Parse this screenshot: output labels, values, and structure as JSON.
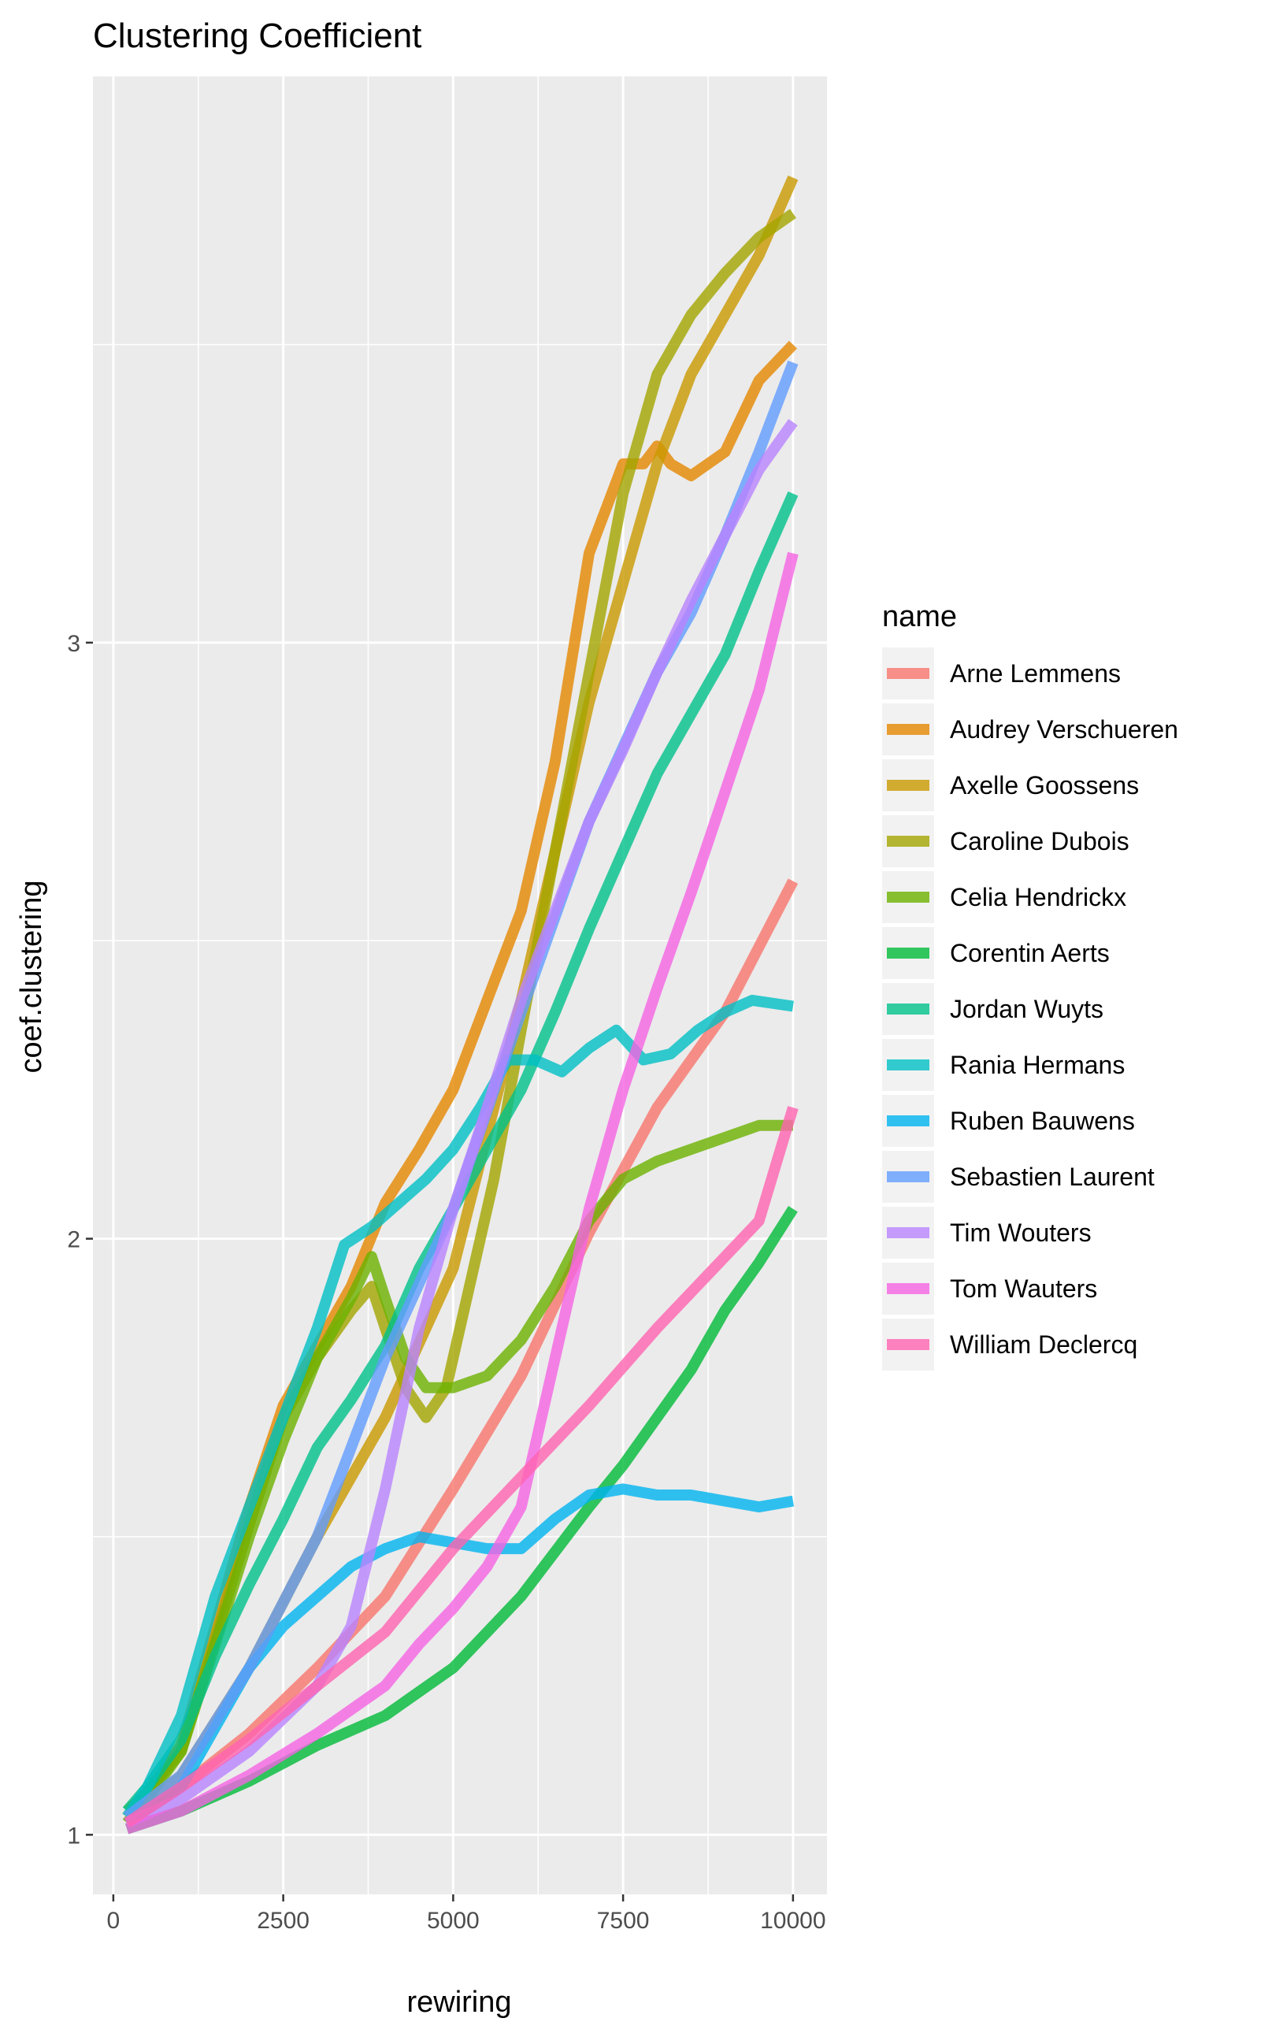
{
  "chart_data": {
    "type": "line",
    "title": "Clustering Coefficient",
    "xlabel": "rewiring",
    "ylabel": "coef.clustering",
    "xlim": [
      -300,
      10500
    ],
    "ylim": [
      0.9,
      3.95
    ],
    "x_ticks": [
      0,
      2500,
      5000,
      7500,
      10000
    ],
    "x_tick_labels": [
      "0",
      "2500",
      "5000",
      "7500",
      "10000"
    ],
    "y_ticks": [
      1,
      2,
      3
    ],
    "y_tick_labels": [
      "1",
      "2",
      "3"
    ],
    "grid": true,
    "legend_title": "name",
    "legend_position": "right",
    "series": [
      {
        "name": "Arne Lemmens",
        "color": "#F8766D",
        "x": [
          200,
          1000,
          2000,
          3000,
          4000,
          5000,
          6000,
          7000,
          8000,
          9000,
          10000
        ],
        "y": [
          1.02,
          1.08,
          1.17,
          1.28,
          1.4,
          1.58,
          1.77,
          2.01,
          2.22,
          2.38,
          2.6
        ]
      },
      {
        "name": "Audrey Verschueren",
        "color": "#E58700",
        "x": [
          200,
          500,
          1000,
          1500,
          2000,
          2500,
          3000,
          3500,
          4000,
          4500,
          5000,
          5500,
          6000,
          6500,
          7000,
          7500,
          7800,
          8000,
          8200,
          8500,
          9000,
          9500,
          10000
        ],
        "y": [
          1.03,
          1.07,
          1.15,
          1.35,
          1.55,
          1.72,
          1.82,
          1.92,
          2.06,
          2.15,
          2.25,
          2.4,
          2.55,
          2.8,
          3.15,
          3.3,
          3.3,
          3.33,
          3.3,
          3.28,
          3.32,
          3.44,
          3.5
        ]
      },
      {
        "name": "Axelle Goossens",
        "color": "#C99800",
        "x": [
          200,
          1000,
          2000,
          3000,
          4000,
          5000,
          6000,
          7000,
          7500,
          8000,
          8500,
          9000,
          9500,
          10000
        ],
        "y": [
          1.02,
          1.1,
          1.28,
          1.5,
          1.7,
          1.95,
          2.4,
          2.9,
          3.1,
          3.3,
          3.45,
          3.55,
          3.65,
          3.78
        ]
      },
      {
        "name": "Caroline Dubois",
        "color": "#A3A500",
        "x": [
          200,
          500,
          1000,
          1500,
          2000,
          2500,
          3000,
          3500,
          3800,
          4000,
          4300,
          4600,
          4900,
          5200,
          5600,
          6000,
          6500,
          7000,
          7500,
          8000,
          8500,
          9000,
          9500,
          10000
        ],
        "y": [
          1.04,
          1.07,
          1.14,
          1.33,
          1.52,
          1.7,
          1.8,
          1.88,
          1.92,
          1.85,
          1.75,
          1.7,
          1.75,
          1.9,
          2.1,
          2.35,
          2.65,
          2.95,
          3.25,
          3.45,
          3.55,
          3.62,
          3.68,
          3.72
        ]
      },
      {
        "name": "Celia Hendrickx",
        "color": "#6BB100",
        "x": [
          200,
          500,
          1000,
          1500,
          2000,
          2500,
          3000,
          3500,
          3800,
          4000,
          4300,
          4600,
          5000,
          5500,
          6000,
          6500,
          7000,
          7500,
          8000,
          8500,
          9000,
          9500,
          10000
        ],
        "y": [
          1.02,
          1.06,
          1.14,
          1.32,
          1.5,
          1.66,
          1.8,
          1.9,
          1.97,
          1.9,
          1.8,
          1.75,
          1.75,
          1.77,
          1.83,
          1.92,
          2.03,
          2.1,
          2.13,
          2.15,
          2.17,
          2.19,
          2.19
        ]
      },
      {
        "name": "Corentin Aerts",
        "color": "#00BA38",
        "x": [
          200,
          1000,
          2000,
          3000,
          4000,
          5000,
          6000,
          7000,
          7500,
          8000,
          8500,
          9000,
          9500,
          10000
        ],
        "y": [
          1.01,
          1.04,
          1.09,
          1.15,
          1.2,
          1.28,
          1.4,
          1.55,
          1.62,
          1.7,
          1.78,
          1.88,
          1.96,
          2.05
        ]
      },
      {
        "name": "Jordan Wuyts",
        "color": "#00C08B",
        "x": [
          200,
          500,
          1000,
          1500,
          2000,
          2500,
          3000,
          3500,
          4000,
          4500,
          5000,
          5500,
          6000,
          6500,
          7000,
          7500,
          8000,
          8500,
          9000,
          9500,
          10000
        ],
        "y": [
          1.04,
          1.08,
          1.16,
          1.3,
          1.42,
          1.53,
          1.65,
          1.73,
          1.82,
          1.95,
          2.05,
          2.15,
          2.25,
          2.38,
          2.52,
          2.65,
          2.78,
          2.88,
          2.98,
          3.12,
          3.25
        ]
      },
      {
        "name": "Rania Hermans",
        "color": "#00BFC4",
        "x": [
          200,
          500,
          1000,
          1500,
          2000,
          2500,
          3000,
          3400,
          3800,
          4200,
          4600,
          5000,
          5400,
          5800,
          6200,
          6600,
          7000,
          7400,
          7800,
          8200,
          8600,
          9000,
          9400,
          10000
        ],
        "y": [
          1.03,
          1.08,
          1.2,
          1.4,
          1.55,
          1.7,
          1.85,
          1.99,
          2.02,
          2.06,
          2.1,
          2.15,
          2.22,
          2.3,
          2.3,
          2.28,
          2.32,
          2.35,
          2.3,
          2.31,
          2.35,
          2.38,
          2.4,
          2.39
        ]
      },
      {
        "name": "Ruben Bauwens",
        "color": "#00B4F0",
        "x": [
          200,
          1000,
          1500,
          2000,
          2500,
          3000,
          3500,
          4000,
          4500,
          5000,
          5500,
          6000,
          6500,
          7000,
          7500,
          8000,
          8500,
          9000,
          9500,
          10000
        ],
        "y": [
          1.02,
          1.08,
          1.18,
          1.28,
          1.35,
          1.4,
          1.45,
          1.48,
          1.5,
          1.49,
          1.48,
          1.48,
          1.53,
          1.57,
          1.58,
          1.57,
          1.57,
          1.56,
          1.55,
          1.56
        ]
      },
      {
        "name": "Sebastien Laurent",
        "color": "#619CFF",
        "x": [
          200,
          1000,
          2000,
          3000,
          4000,
          5000,
          6000,
          7000,
          8000,
          8500,
          9000,
          9500,
          10000
        ],
        "y": [
          1.03,
          1.1,
          1.28,
          1.5,
          1.8,
          2.05,
          2.38,
          2.7,
          2.95,
          3.05,
          3.18,
          3.32,
          3.47
        ]
      },
      {
        "name": "Tim Wouters",
        "color": "#B983FF",
        "x": [
          200,
          1000,
          2000,
          3000,
          3500,
          4000,
          4500,
          5000,
          5500,
          6000,
          6500,
          7000,
          7500,
          8000,
          8500,
          9000,
          9500,
          10000
        ],
        "y": [
          1.02,
          1.06,
          1.14,
          1.25,
          1.35,
          1.58,
          1.85,
          2.05,
          2.22,
          2.4,
          2.55,
          2.7,
          2.82,
          2.95,
          3.07,
          3.18,
          3.29,
          3.37
        ]
      },
      {
        "name": "Tom Wauters",
        "color": "#F564E3",
        "x": [
          200,
          1000,
          2000,
          3000,
          4000,
          4500,
          5000,
          5500,
          6000,
          6500,
          7000,
          7500,
          8000,
          8500,
          9000,
          9500,
          10000
        ],
        "y": [
          1.01,
          1.04,
          1.1,
          1.17,
          1.25,
          1.32,
          1.38,
          1.45,
          1.55,
          1.8,
          2.05,
          2.25,
          2.42,
          2.58,
          2.75,
          2.92,
          3.15
        ]
      },
      {
        "name": "William Declercq",
        "color": "#FF64B0",
        "x": [
          200,
          1000,
          2000,
          3000,
          4000,
          5000,
          6000,
          7000,
          8000,
          9000,
          9500,
          10000
        ],
        "y": [
          1.02,
          1.08,
          1.16,
          1.25,
          1.34,
          1.48,
          1.6,
          1.72,
          1.85,
          1.97,
          2.03,
          2.22
        ]
      }
    ]
  }
}
